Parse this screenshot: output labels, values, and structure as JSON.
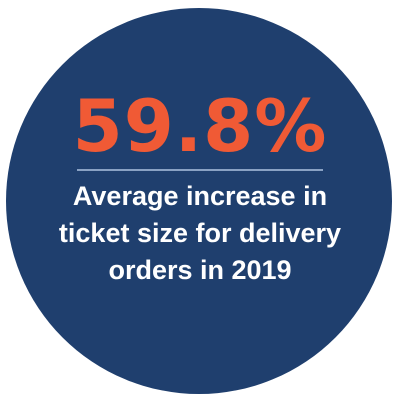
{
  "stat": {
    "value": "59.8%"
  },
  "caption": {
    "lines": [
      "Average increase in",
      "ticket size for delivery",
      "orders in 2019"
    ]
  },
  "colors": {
    "circle": "#1f3f6e",
    "accent": "#f05a35",
    "text": "#ffffff",
    "divider": "#8aa2c4"
  }
}
